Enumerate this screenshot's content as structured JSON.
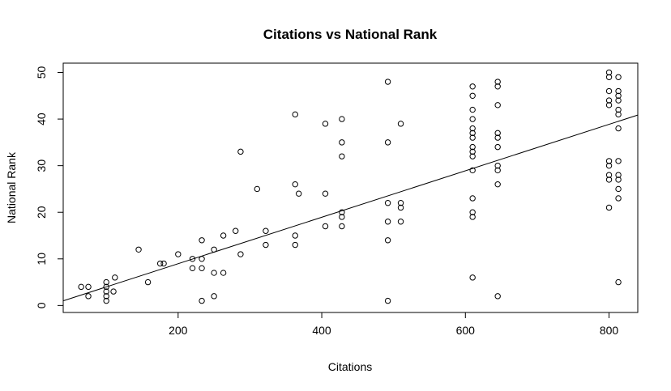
{
  "chart_data": {
    "type": "scatter",
    "title": "Citations vs National Rank",
    "xlabel": "Citations",
    "ylabel": "National Rank",
    "xlim": [
      40,
      840
    ],
    "ylim": [
      -1.5,
      52
    ],
    "x_ticks": [
      200,
      400,
      600,
      800
    ],
    "y_ticks": [
      0,
      10,
      20,
      30,
      40,
      50
    ],
    "grid": false,
    "legend": "none",
    "regression_line": {
      "intercept": -1.0,
      "slope": 0.04984,
      "x_range": [
        40,
        840
      ]
    },
    "series": [
      {
        "points": [
          [
            65,
            4
          ],
          [
            75,
            4
          ],
          [
            75,
            2
          ],
          [
            100,
            5
          ],
          [
            100,
            4
          ],
          [
            100,
            3
          ],
          [
            100,
            2
          ],
          [
            100,
            1
          ],
          [
            110,
            3
          ],
          [
            112,
            6
          ],
          [
            145,
            12
          ],
          [
            158,
            5
          ],
          [
            175,
            9
          ],
          [
            180,
            9
          ],
          [
            200,
            11
          ],
          [
            220,
            10
          ],
          [
            220,
            8
          ],
          [
            233,
            14
          ],
          [
            233,
            10
          ],
          [
            233,
            8
          ],
          [
            233,
            1
          ],
          [
            250,
            12
          ],
          [
            250,
            7
          ],
          [
            250,
            2
          ],
          [
            263,
            7
          ],
          [
            263,
            15
          ],
          [
            280,
            16
          ],
          [
            287,
            11
          ],
          [
            287,
            33
          ],
          [
            310,
            25
          ],
          [
            322,
            16
          ],
          [
            322,
            13
          ],
          [
            363,
            41
          ],
          [
            363,
            26
          ],
          [
            363,
            15
          ],
          [
            363,
            13
          ],
          [
            368,
            24
          ],
          [
            405,
            39
          ],
          [
            405,
            24
          ],
          [
            405,
            17
          ],
          [
            428,
            40
          ],
          [
            428,
            35
          ],
          [
            428,
            32
          ],
          [
            428,
            20
          ],
          [
            428,
            19
          ],
          [
            428,
            17
          ],
          [
            492,
            48
          ],
          [
            492,
            35
          ],
          [
            492,
            22
          ],
          [
            492,
            18
          ],
          [
            492,
            14
          ],
          [
            492,
            1
          ],
          [
            510,
            39
          ],
          [
            510,
            22
          ],
          [
            510,
            21
          ],
          [
            510,
            18
          ],
          [
            610,
            47
          ],
          [
            610,
            45
          ],
          [
            610,
            42
          ],
          [
            610,
            40
          ],
          [
            610,
            38
          ],
          [
            610,
            37
          ],
          [
            610,
            36
          ],
          [
            610,
            34
          ],
          [
            610,
            33
          ],
          [
            610,
            32
          ],
          [
            610,
            29
          ],
          [
            610,
            23
          ],
          [
            610,
            20
          ],
          [
            610,
            19
          ],
          [
            610,
            6
          ],
          [
            645,
            48
          ],
          [
            645,
            47
          ],
          [
            645,
            43
          ],
          [
            645,
            37
          ],
          [
            645,
            36
          ],
          [
            645,
            34
          ],
          [
            645,
            30
          ],
          [
            645,
            29
          ],
          [
            645,
            26
          ],
          [
            645,
            2
          ],
          [
            800,
            50
          ],
          [
            800,
            49
          ],
          [
            800,
            46
          ],
          [
            800,
            44
          ],
          [
            800,
            43
          ],
          [
            800,
            31
          ],
          [
            800,
            30
          ],
          [
            800,
            28
          ],
          [
            800,
            27
          ],
          [
            800,
            21
          ],
          [
            813,
            49
          ],
          [
            813,
            46
          ],
          [
            813,
            45
          ],
          [
            813,
            44
          ],
          [
            813,
            42
          ],
          [
            813,
            41
          ],
          [
            813,
            38
          ],
          [
            813,
            31
          ],
          [
            813,
            28
          ],
          [
            813,
            27
          ],
          [
            813,
            25
          ],
          [
            813,
            23
          ],
          [
            813,
            5
          ]
        ]
      }
    ]
  }
}
